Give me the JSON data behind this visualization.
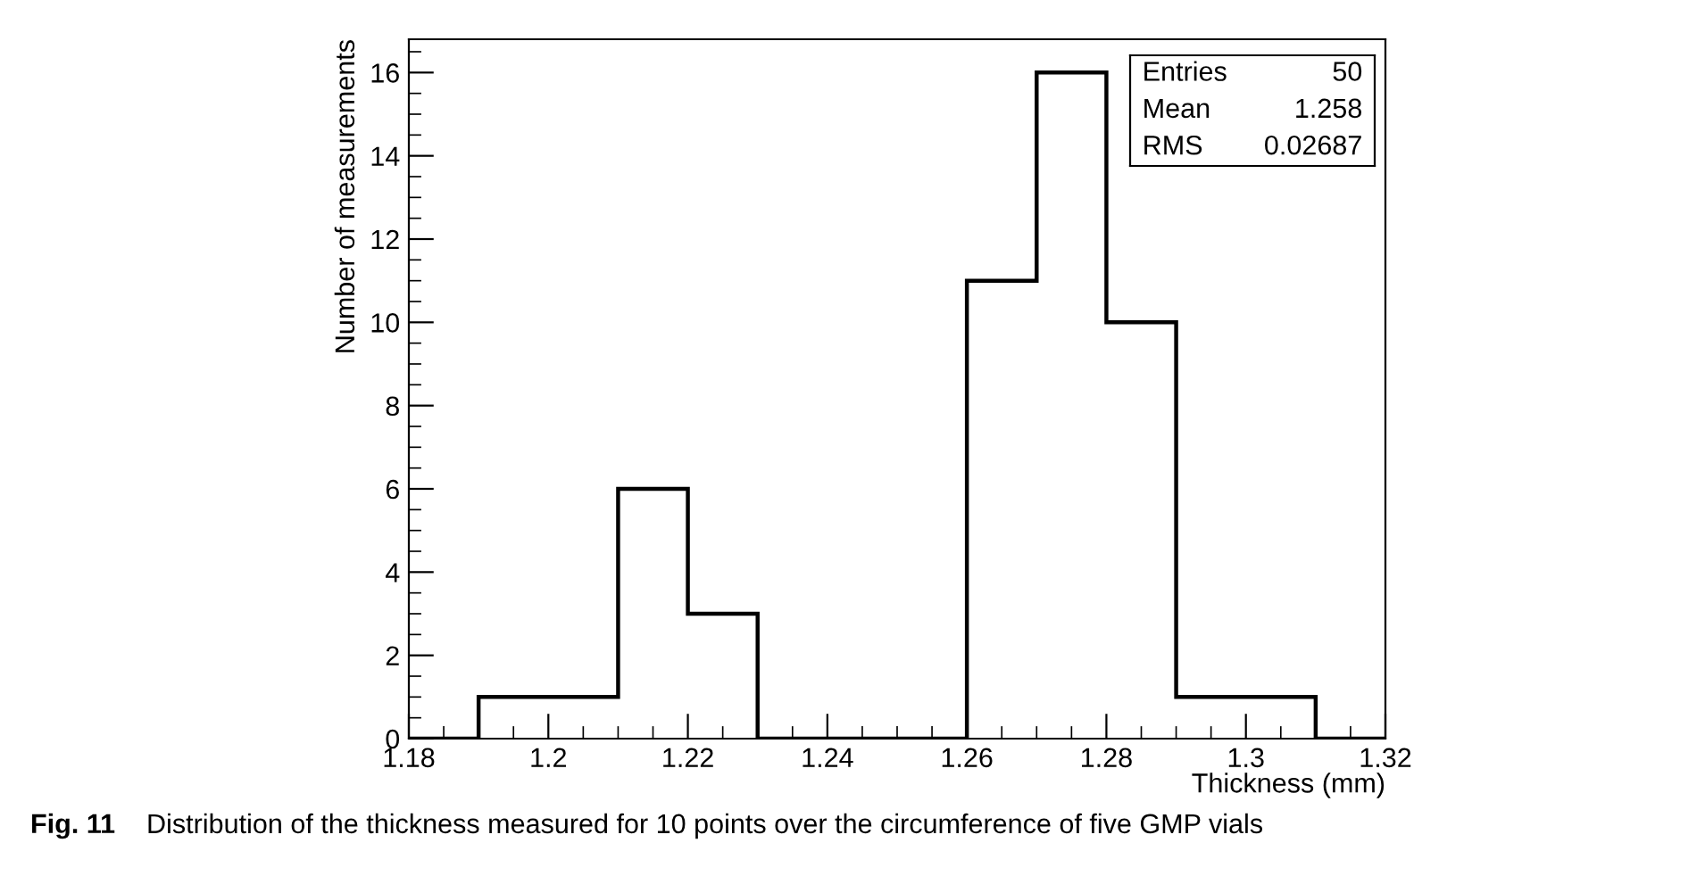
{
  "chart_data": {
    "type": "histogram",
    "xlabel": "Thickness (mm)",
    "ylabel": "Number of measurements",
    "bins": [
      1.18,
      1.19,
      1.2,
      1.21,
      1.22,
      1.23,
      1.24,
      1.25,
      1.26,
      1.27,
      1.28,
      1.29,
      1.3,
      1.31,
      1.32
    ],
    "values": [
      0,
      1,
      1,
      6,
      3,
      0,
      0,
      0,
      11,
      16,
      10,
      1,
      1,
      0
    ],
    "color": "#000000",
    "xlim": [
      1.18,
      1.32
    ],
    "xticks": [
      1.18,
      1.2,
      1.22,
      1.24,
      1.26,
      1.28,
      1.3,
      1.32
    ],
    "ylim": [
      0,
      16.8
    ],
    "yticks": [
      0,
      2,
      4,
      6,
      8,
      10,
      12,
      14,
      16
    ],
    "grid": false,
    "legend": false,
    "annotations": [
      "Entries",
      "50",
      "Mean",
      "1.258",
      "RMS",
      "0.02687",
      "Fig. 11",
      "Distribution of the thickness measured for 10 points over the circumference of five GMP vials"
    ]
  }
}
